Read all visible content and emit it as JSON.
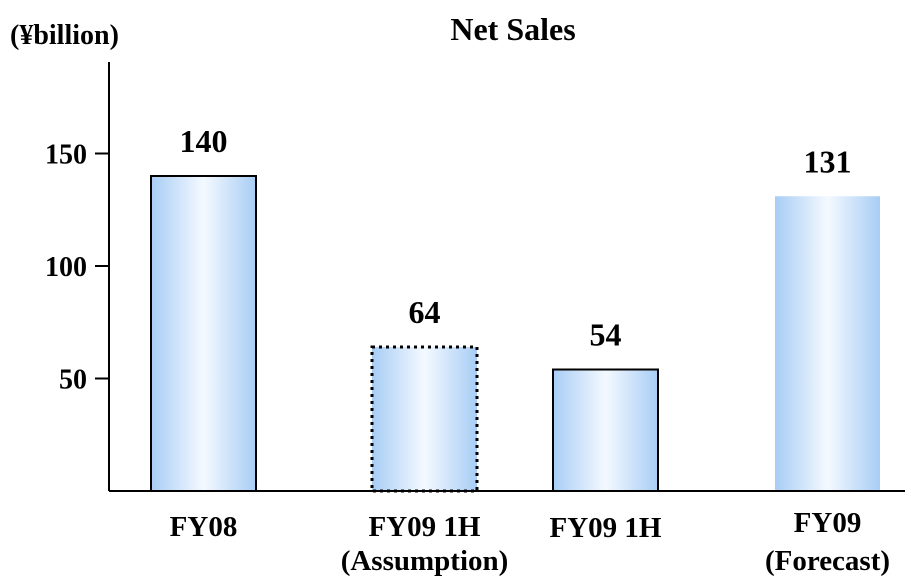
{
  "chart_data": {
    "type": "bar",
    "title": "Net Sales",
    "unit_label": "(¥billion)",
    "categories": [
      {
        "line1": "FY08",
        "line2": ""
      },
      {
        "line1": "FY09 1H",
        "line2": "(Assumption)"
      },
      {
        "line1": "FY09 1H",
        "line2": ""
      },
      {
        "line1": "FY09",
        "line2": "(Forecast)"
      }
    ],
    "values": [
      140,
      64,
      54,
      131
    ],
    "data_labels": [
      "140",
      "64",
      "54",
      "131"
    ],
    "yticks": [
      50,
      100,
      150
    ],
    "ylim": [
      0,
      190
    ],
    "grid": false,
    "bar_styles": [
      "solid-outline",
      "dotted-outline",
      "solid-outline",
      "no-outline"
    ],
    "label_colors": [
      "#000000",
      "#4a4a4a",
      "#000000",
      "#000000"
    ],
    "colors": {
      "bar_edge": "#a8cdf5",
      "bar_center": "#f4f9ff",
      "axis": "#000000"
    }
  }
}
